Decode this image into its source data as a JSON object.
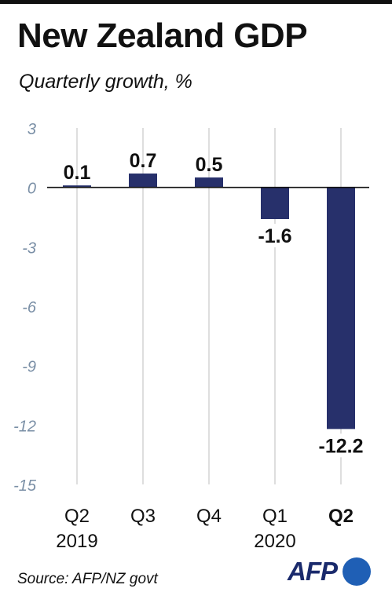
{
  "title": "New Zealand GDP",
  "subtitle": "Quarterly growth, %",
  "source": "Source: AFP/NZ govt",
  "logo": "AFP",
  "colors": {
    "bar": "#27306b",
    "axis": "#111111",
    "grid": "#bdbdbd",
    "tick_text": "#7a8fa6"
  },
  "chart_data": {
    "type": "bar",
    "categories": [
      "Q2",
      "Q3",
      "Q4",
      "Q1",
      "Q2"
    ],
    "year_labels": [
      "2019",
      "",
      "",
      "2020",
      ""
    ],
    "values": [
      0.1,
      0.7,
      0.5,
      -1.6,
      -12.2
    ],
    "data_labels": [
      "0.1",
      "0.7",
      "0.5",
      "-1.6",
      "-12.2"
    ],
    "highlight_category_index": 4,
    "title": "New Zealand GDP",
    "subtitle": "Quarterly growth, %",
    "xlabel": "",
    "ylabel": "",
    "ylim": [
      -15,
      3
    ],
    "yticks": [
      3,
      0,
      -3,
      -6,
      -9,
      -12,
      -15
    ],
    "ytick_labels": [
      "3",
      "0",
      "-3",
      "-6",
      "-9",
      "-12",
      "-15"
    ],
    "grid": "vertical",
    "legend": "none"
  }
}
